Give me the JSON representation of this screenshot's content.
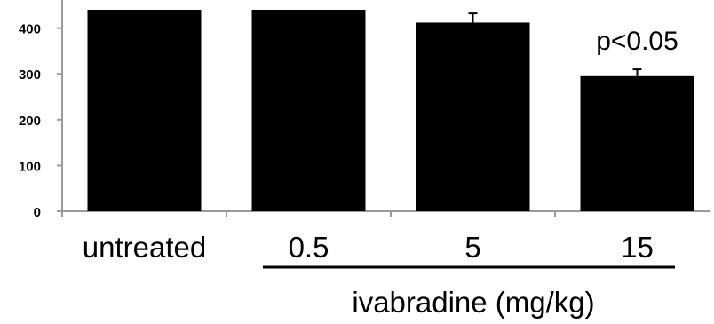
{
  "chart_data": {
    "type": "bar",
    "categories": [
      "untreated",
      "0.5",
      "5",
      "15"
    ],
    "values": [
      440,
      440,
      412,
      295
    ],
    "errors": [
      0,
      0,
      20,
      15
    ],
    "ylim": [
      0,
      440
    ],
    "yticks": [
      0,
      100,
      200,
      300,
      400
    ],
    "ytick_labels": [
      "0",
      "100",
      "200",
      "300",
      "400"
    ],
    "bar_color": "#000000",
    "group_label": "ivabradine (mg/kg)",
    "annotation": {
      "text": "p<0.05",
      "category_index": 3
    }
  }
}
